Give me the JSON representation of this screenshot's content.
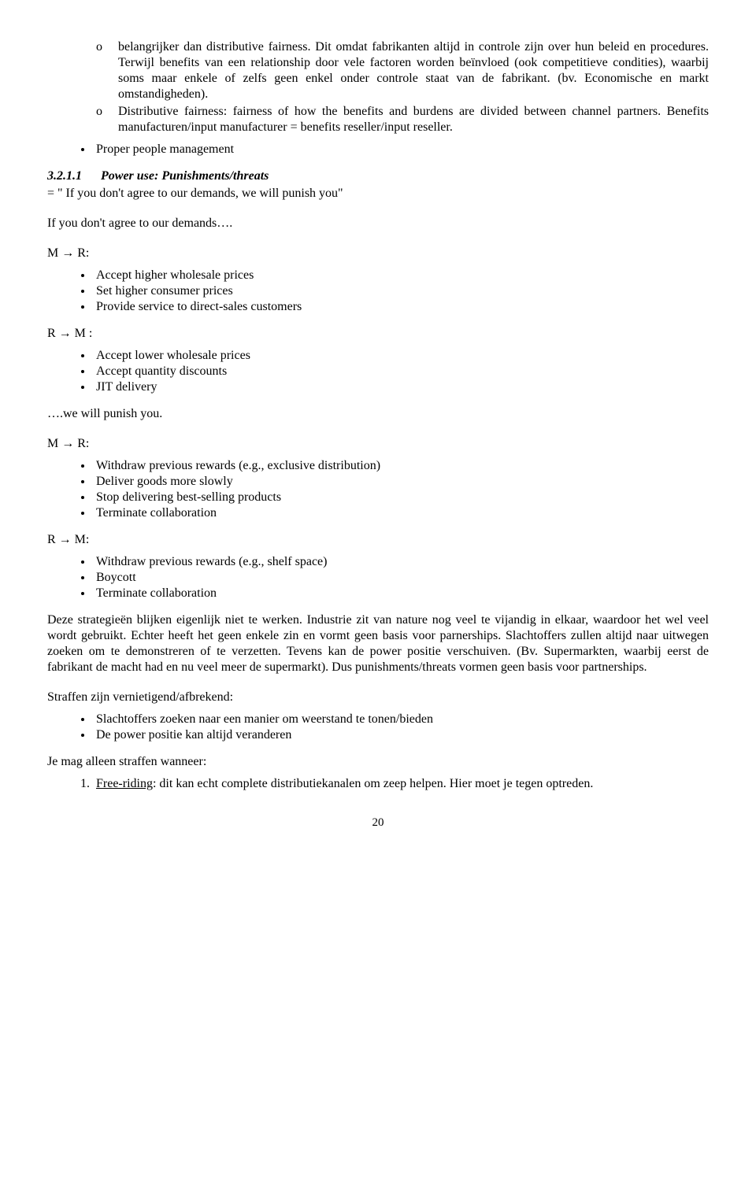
{
  "intro_nested_sub1": "belangrijker dan distributive fairness. Dit omdat fabrikanten altijd in controle zijn over hun beleid en procedures. Terwijl benefits van een relationship door vele factoren worden beïnvloed (ook competitieve condities), waarbij soms maar enkele of zelfs geen enkel onder controle staat van de fabrikant. (bv. Economische en markt omstandigheden).",
  "intro_nested_sub2": "Distributive fairness: fairness of how the benefits and burdens are divided between channel partners. Benefits manufacturen/input manufacturer = benefits reseller/input reseller.",
  "intro_bullet_last": "Proper people management",
  "section": {
    "number": "3.2.1.1",
    "title": "Power use: Punishments/threats",
    "definition": "= \" If you don't agree to our demands, we will punish you\"",
    "line1": "If you don't agree to our demands….",
    "label_MR": "M → R:",
    "label_RM": "R → M :",
    "label_RM2": "R → M:",
    "mr1": [
      "Accept higher wholesale prices",
      "Set higher consumer prices",
      "Provide service to direct-sales customers"
    ],
    "rm1": [
      "Accept lower wholesale prices",
      "Accept quantity discounts",
      " JIT delivery"
    ],
    "punish_line": "….we will punish you.",
    "mr2": [
      "Withdraw previous rewards (e.g., exclusive distribution)",
      "Deliver goods more slowly",
      "Stop delivering best-selling products",
      "Terminate collaboration"
    ],
    "rm2": [
      "Withdraw previous rewards (e.g., shelf space)",
      "Boycott",
      "Terminate collaboration"
    ],
    "para1": "Deze strategieën blijken eigenlijk niet te werken. Industrie zit van nature nog veel te vijandig in elkaar, waardoor het wel veel wordt gebruikt. Echter heeft het geen enkele zin en vormt geen basis voor parnerships. Slachtoffers zullen altijd naar uitwegen zoeken om te demonstreren of te verzetten. Tevens kan de power positie verschuiven. (Bv. Supermarkten, waarbij eerst de fabrikant de macht had en nu veel meer de supermarkt). Dus punishments/threats vormen geen basis voor partnerships.",
    "para2_label": "Straffen zijn vernietigend/afbrekend:",
    "para2_items": [
      "Slachtoffers zoeken naar een manier om weerstand te tonen/bieden",
      "De power positie kan altijd veranderen"
    ],
    "para3_label": "Je mag alleen straffen wanneer:",
    "numbered1_underline": "Free-riding",
    "numbered1_rest": ": dit kan echt complete distributiekanalen om zeep helpen. Hier moet je tegen optreden."
  },
  "page_number": "20"
}
